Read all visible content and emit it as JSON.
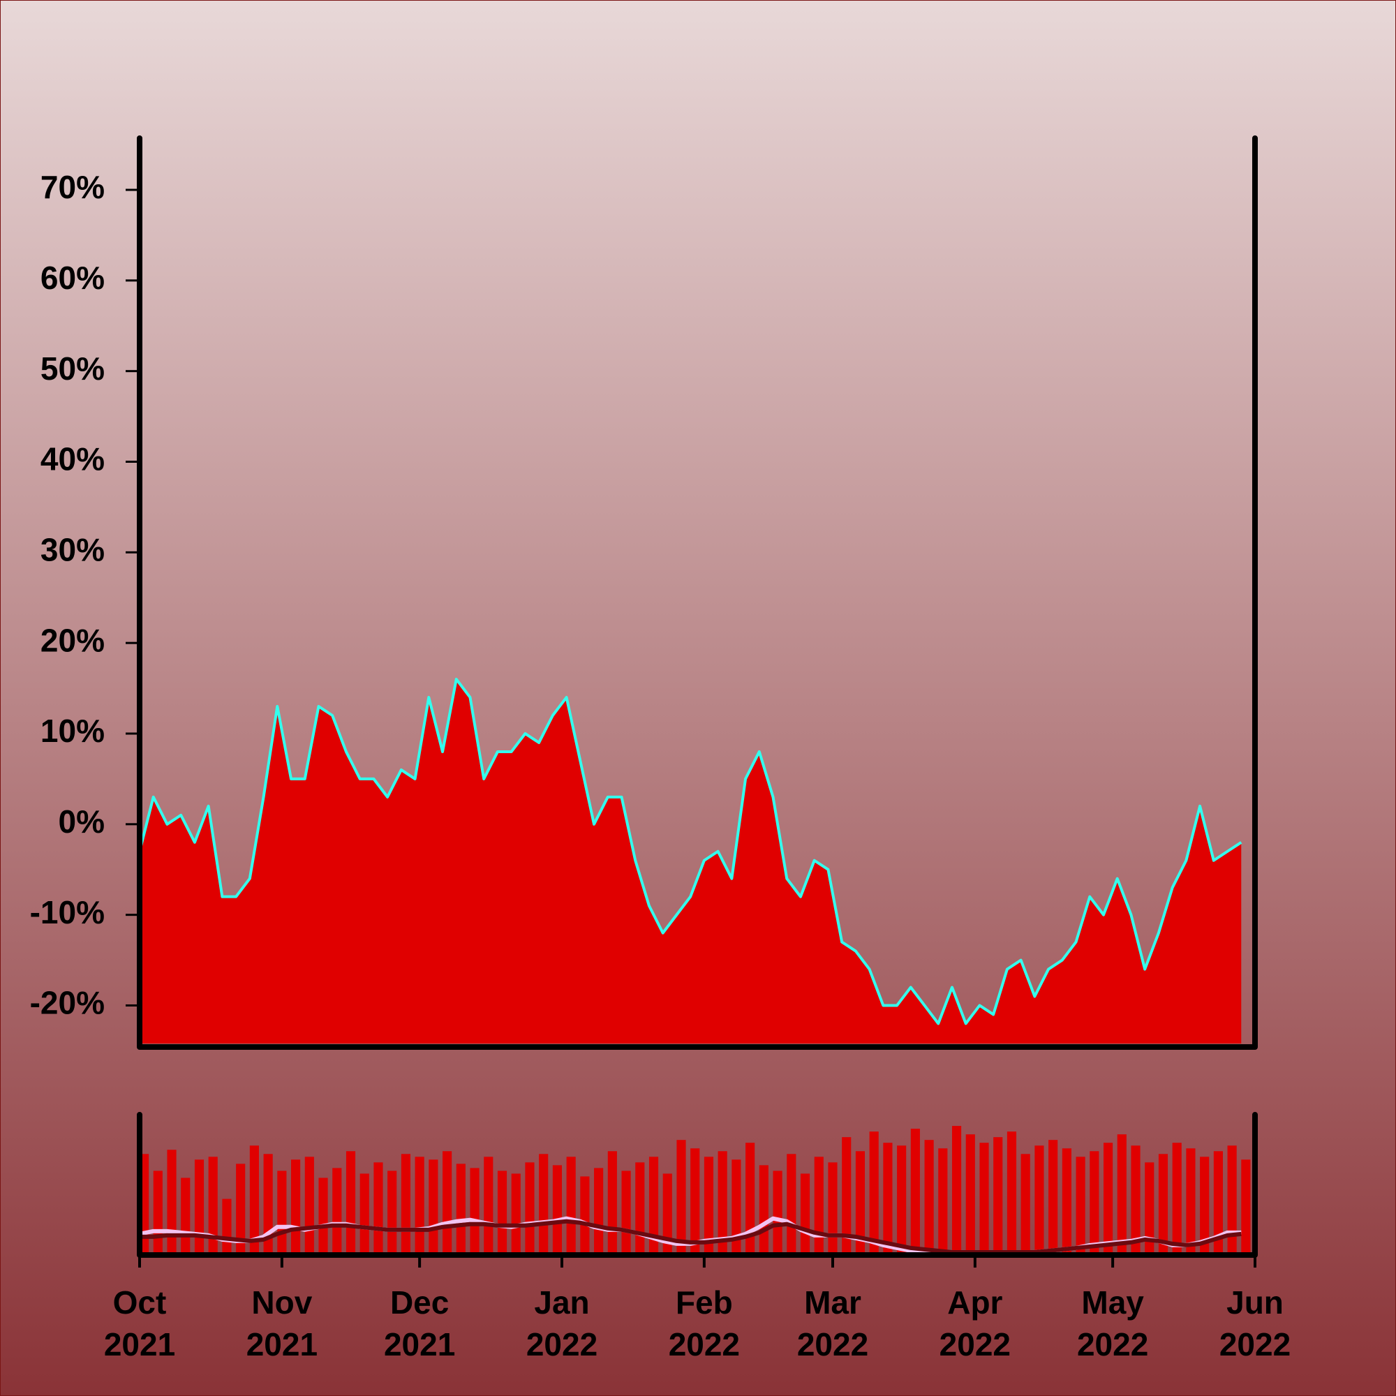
{
  "chart_data": [
    {
      "type": "area",
      "color": "#e00000",
      "line_color": "#33ffee",
      "xlim": [
        0,
        243
      ],
      "x": [
        0,
        3,
        6,
        9,
        12,
        15,
        18,
        21,
        24,
        27,
        30,
        33,
        36,
        39,
        42,
        45,
        48,
        51,
        54,
        57,
        60,
        63,
        66,
        69,
        72,
        75,
        78,
        81,
        84,
        87,
        90,
        93,
        96,
        99,
        102,
        105,
        108,
        111,
        114,
        117,
        120,
        123,
        126,
        129,
        132,
        135,
        138,
        141,
        144,
        147,
        150,
        153,
        156,
        159,
        162,
        165,
        168,
        171,
        174,
        177,
        180,
        183,
        186,
        189,
        192,
        195,
        198,
        201,
        204,
        207,
        210,
        213,
        216,
        219,
        222,
        225,
        228,
        231,
        234,
        237,
        240
      ],
      "values": [
        -3,
        3,
        0,
        1,
        -2,
        2,
        -8,
        -8,
        -6,
        3,
        13,
        5,
        5,
        13,
        12,
        8,
        5,
        5,
        3,
        6,
        5,
        14,
        8,
        16,
        14,
        5,
        8,
        8,
        10,
        9,
        12,
        14,
        7,
        0,
        3,
        3,
        -4,
        -9,
        -12,
        -10,
        -8,
        -4,
        -3,
        -6,
        5,
        8,
        3,
        -6,
        -8,
        -4,
        -5,
        -13,
        -14,
        -16,
        -20,
        -20,
        -18,
        -20,
        -22,
        -18,
        -22,
        -20,
        -21,
        -16,
        -15,
        -19,
        -16,
        -15,
        -13,
        -8,
        -10,
        -6,
        -10,
        -16,
        -12,
        -7,
        -4,
        2,
        -4,
        -3,
        -2
      ],
      "ylim": [
        -24.2,
        75.7
      ],
      "yticks": [
        {
          "value": -20,
          "label": "-20%"
        },
        {
          "value": -10,
          "label": "-10%"
        },
        {
          "value": 0,
          "label": "0%"
        },
        {
          "value": 10,
          "label": "10%"
        },
        {
          "value": 20,
          "label": "20%"
        },
        {
          "value": 30,
          "label": "30%"
        },
        {
          "value": 40,
          "label": "40%"
        },
        {
          "value": 50,
          "label": "50%"
        },
        {
          "value": 60,
          "label": "60%"
        },
        {
          "value": 70,
          "label": "70%"
        }
      ]
    },
    {
      "type": "bar",
      "xlim": [
        0,
        243
      ],
      "x": [
        0,
        3,
        6,
        9,
        12,
        15,
        18,
        21,
        24,
        27,
        30,
        33,
        36,
        39,
        42,
        45,
        48,
        51,
        54,
        57,
        60,
        63,
        66,
        69,
        72,
        75,
        78,
        81,
        84,
        87,
        90,
        93,
        96,
        99,
        102,
        105,
        108,
        111,
        114,
        117,
        120,
        123,
        126,
        129,
        132,
        135,
        138,
        141,
        144,
        147,
        150,
        153,
        156,
        159,
        162,
        165,
        168,
        171,
        174,
        177,
        180,
        183,
        186,
        189,
        192,
        195,
        198,
        201,
        204,
        207,
        210,
        213,
        216,
        219,
        222,
        225,
        228,
        231,
        234,
        237,
        240
      ],
      "ylim": [
        0,
        100
      ],
      "series": [
        {
          "type": "bar",
          "color": "#e00000",
          "values": [
            72,
            60,
            75,
            55,
            68,
            70,
            40,
            65,
            78,
            72,
            60,
            68,
            70,
            55,
            62,
            74,
            58,
            66,
            60,
            72,
            70,
            68,
            74,
            65,
            62,
            70,
            60,
            58,
            66,
            72,
            64,
            70,
            56,
            62,
            74,
            60,
            66,
            70,
            58,
            82,
            76,
            70,
            74,
            68,
            80,
            64,
            60,
            72,
            58,
            70,
            66,
            84,
            74,
            88,
            80,
            78,
            90,
            82,
            76,
            92,
            86,
            80,
            84,
            88,
            72,
            78,
            82,
            76,
            70,
            74,
            80,
            86,
            78,
            66,
            72,
            80,
            76,
            70,
            74,
            78,
            68
          ]
        },
        {
          "type": "line",
          "color": "#f2c4f2",
          "values": [
            15,
            17,
            17,
            16,
            15,
            14,
            11,
            10,
            10,
            13,
            20,
            20,
            18,
            20,
            22,
            22,
            20,
            19,
            18,
            18,
            18,
            19,
            22,
            24,
            25,
            23,
            21,
            20,
            22,
            23,
            24,
            26,
            24,
            20,
            18,
            18,
            16,
            13,
            10,
            8,
            8,
            10,
            11,
            12,
            15,
            20,
            26,
            24,
            18,
            14,
            14,
            14,
            12,
            10,
            7,
            5,
            3,
            2,
            2,
            1,
            1,
            2,
            1,
            1,
            1,
            2,
            3,
            4,
            5,
            7,
            8,
            9,
            10,
            12,
            10,
            7,
            7,
            9,
            12,
            16,
            16
          ]
        },
        {
          "type": "line",
          "color": "#6a0a10",
          "values": [
            13,
            13,
            14,
            14,
            14,
            13,
            12,
            11,
            10,
            11,
            15,
            18,
            19,
            20,
            21,
            21,
            20,
            19,
            18,
            18,
            18,
            18,
            20,
            21,
            22,
            22,
            21,
            21,
            21,
            22,
            23,
            24,
            23,
            21,
            19,
            18,
            16,
            14,
            12,
            10,
            9,
            9,
            10,
            11,
            13,
            16,
            21,
            22,
            19,
            16,
            14,
            14,
            13,
            11,
            9,
            7,
            5,
            4,
            3,
            2,
            2,
            2,
            2,
            2,
            2,
            2,
            3,
            4,
            5,
            6,
            7,
            8,
            9,
            11,
            10,
            8,
            7,
            8,
            11,
            14,
            15
          ]
        }
      ],
      "xticks": [
        {
          "value": 0,
          "label": "Oct 2021"
        },
        {
          "value": 31,
          "label": "Nov 2021"
        },
        {
          "value": 61,
          "label": "Dec 2021"
        },
        {
          "value": 92,
          "label": "Jan 2022"
        },
        {
          "value": 123,
          "label": "Feb 2022"
        },
        {
          "value": 151,
          "label": "Mar 2022"
        },
        {
          "value": 182,
          "label": "Apr 2022"
        },
        {
          "value": 212,
          "label": "May 2022"
        },
        {
          "value": 243,
          "label": "Jun 2022"
        }
      ]
    }
  ]
}
